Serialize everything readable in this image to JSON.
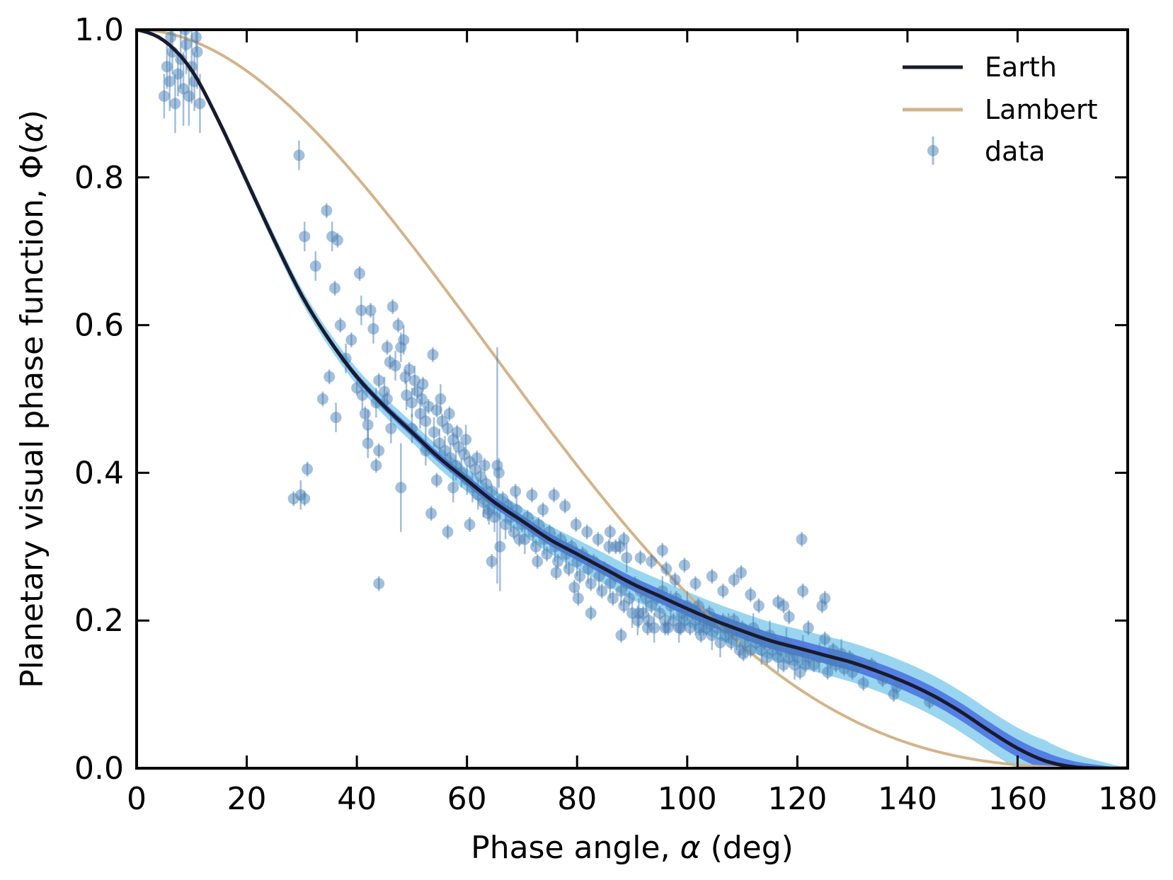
{
  "chart_data": {
    "type": "scatter",
    "title": "",
    "xlabel_main": "Phase angle, ",
    "xlabel_symbol": "α",
    "xlabel_unit": " (deg)",
    "ylabel_main": "Planetary visual phase function, Φ(",
    "ylabel_symbol": "α",
    "ylabel_close": ")",
    "xlim": [
      0,
      180
    ],
    "ylim": [
      0,
      1
    ],
    "xticks": [
      "0",
      "20",
      "40",
      "60",
      "80",
      "100",
      "120",
      "140",
      "160",
      "180"
    ],
    "yticks": [
      "0.0",
      "0.2",
      "0.4",
      "0.6",
      "0.8",
      "1.0"
    ],
    "grid": false,
    "legend_position": "top-right",
    "legend": {
      "earth": "Earth",
      "lambert": "Lambert",
      "data": "data"
    },
    "colors": {
      "earth": "#1a1a2e",
      "lambert": "#d2b48c",
      "data": "#4a7fb5",
      "band_outer": "#87ceeb",
      "band_inner": "#4169e1"
    },
    "earth_curve": {
      "x": [
        0,
        5,
        10,
        15,
        20,
        25,
        30,
        35,
        40,
        45,
        50,
        55,
        60,
        65,
        70,
        75,
        80,
        85,
        90,
        95,
        100,
        105,
        110,
        115,
        120,
        125,
        130,
        135,
        140,
        145,
        150,
        155,
        160,
        165,
        170,
        175,
        180
      ],
      "y": [
        1.0,
        0.985,
        0.945,
        0.875,
        0.795,
        0.715,
        0.64,
        0.58,
        0.53,
        0.49,
        0.455,
        0.42,
        0.39,
        0.36,
        0.335,
        0.31,
        0.29,
        0.27,
        0.25,
        0.233,
        0.216,
        0.2,
        0.186,
        0.173,
        0.163,
        0.153,
        0.143,
        0.13,
        0.115,
        0.097,
        0.075,
        0.05,
        0.027,
        0.01,
        0.002,
        0.0,
        0.0
      ],
      "band_inner_halfwidth": 0.012,
      "band_outer_halfwidth": 0.028
    },
    "lambert_curve": {
      "formula": "(sin(a) + (pi - a) cos(a)) / pi"
    },
    "data_points": [
      [
        5,
        0.91,
        0.03
      ],
      [
        5.5,
        0.95,
        0.03
      ],
      [
        6,
        0.93,
        0.04
      ],
      [
        6.5,
        0.97,
        0.03
      ],
      [
        7,
        0.9,
        0.04
      ],
      [
        7.5,
        0.94,
        0.03
      ],
      [
        8,
        0.96,
        0.04
      ],
      [
        8.5,
        0.92,
        0.05
      ],
      [
        9,
        0.98,
        0.04
      ],
      [
        9.5,
        0.91,
        0.04
      ],
      [
        10,
        0.95,
        0.05
      ],
      [
        10.5,
        0.93,
        0.04
      ],
      [
        11,
        0.97,
        0.05
      ],
      [
        11.5,
        0.9,
        0.04
      ],
      [
        6.2,
        0.99,
        0.02
      ],
      [
        8.8,
        1.0,
        0.03
      ],
      [
        10.8,
        0.99,
        0.02
      ],
      [
        29.5,
        0.83,
        0.02
      ],
      [
        30.5,
        0.72,
        0.02
      ],
      [
        32.5,
        0.68,
        0.02
      ],
      [
        34.5,
        0.755,
        0.01
      ],
      [
        35.5,
        0.72,
        0.02
      ],
      [
        36.5,
        0.715,
        0.01
      ],
      [
        36,
        0.65,
        0.01
      ],
      [
        40.5,
        0.67,
        0.01
      ],
      [
        40.8,
        0.62,
        0.02
      ],
      [
        42.5,
        0.62,
        0.01
      ],
      [
        43,
        0.595,
        0.02
      ],
      [
        46.5,
        0.625,
        0.01
      ],
      [
        47.5,
        0.6,
        0.01
      ],
      [
        48.5,
        0.58,
        0.02
      ],
      [
        48,
        0.57,
        0.02
      ],
      [
        45.5,
        0.57,
        0.01
      ],
      [
        46,
        0.55,
        0.01
      ],
      [
        47,
        0.545,
        0.02
      ],
      [
        48.8,
        0.53,
        0.01
      ],
      [
        37,
        0.6,
        0.01
      ],
      [
        38,
        0.555,
        0.02
      ],
      [
        39,
        0.58,
        0.01
      ],
      [
        40,
        0.515,
        0.01
      ],
      [
        41,
        0.505,
        0.02
      ],
      [
        41.5,
        0.48,
        0.01
      ],
      [
        42,
        0.465,
        0.02
      ],
      [
        43.5,
        0.495,
        0.02
      ],
      [
        44,
        0.525,
        0.01
      ],
      [
        45,
        0.51,
        0.02
      ],
      [
        36.2,
        0.475,
        0.02
      ],
      [
        33.8,
        0.5,
        0.01
      ],
      [
        35,
        0.53,
        0.01
      ],
      [
        42,
        0.44,
        0.02
      ],
      [
        44,
        0.43,
        0.01
      ],
      [
        43.5,
        0.41,
        0.01
      ],
      [
        45.5,
        0.5,
        0.01
      ],
      [
        46.2,
        0.46,
        0.02
      ],
      [
        28.5,
        0.365,
        0.01
      ],
      [
        29.8,
        0.37,
        0.02
      ],
      [
        30.5,
        0.365,
        0.01
      ],
      [
        31,
        0.405,
        0.01
      ],
      [
        44,
        0.25,
        0.01
      ],
      [
        48,
        0.38,
        0.06
      ],
      [
        53.5,
        0.345,
        0.01
      ],
      [
        56.5,
        0.32,
        0.01
      ],
      [
        64.5,
        0.28,
        0.01
      ],
      [
        66,
        0.3,
        0.06
      ],
      [
        49,
        0.505,
        0.02
      ],
      [
        50,
        0.495,
        0.02
      ],
      [
        51,
        0.51,
        0.01
      ],
      [
        51.5,
        0.48,
        0.02
      ],
      [
        52,
        0.52,
        0.01
      ],
      [
        52.5,
        0.47,
        0.02
      ],
      [
        53,
        0.49,
        0.01
      ],
      [
        54,
        0.455,
        0.02
      ],
      [
        54.5,
        0.485,
        0.01
      ],
      [
        55,
        0.44,
        0.02
      ],
      [
        55.5,
        0.47,
        0.01
      ],
      [
        56,
        0.43,
        0.02
      ],
      [
        56.5,
        0.46,
        0.01
      ],
      [
        57,
        0.42,
        0.02
      ],
      [
        57.5,
        0.445,
        0.01
      ],
      [
        58,
        0.41,
        0.02
      ],
      [
        58.5,
        0.435,
        0.01
      ],
      [
        59,
        0.4,
        0.02
      ],
      [
        59.5,
        0.425,
        0.01
      ],
      [
        60,
        0.39,
        0.02
      ],
      [
        60.5,
        0.415,
        0.01
      ],
      [
        61,
        0.38,
        0.02
      ],
      [
        61.5,
        0.405,
        0.01
      ],
      [
        62,
        0.37,
        0.02
      ],
      [
        62.5,
        0.395,
        0.01
      ],
      [
        63,
        0.36,
        0.02
      ],
      [
        63.5,
        0.385,
        0.01
      ],
      [
        64,
        0.35,
        0.02
      ],
      [
        64.5,
        0.375,
        0.01
      ],
      [
        65,
        0.34,
        0.02
      ],
      [
        65.5,
        0.41,
        0.16
      ],
      [
        66.5,
        0.365,
        0.01
      ],
      [
        67,
        0.33,
        0.02
      ],
      [
        67.5,
        0.355,
        0.01
      ],
      [
        68,
        0.34,
        0.02
      ],
      [
        68.5,
        0.32,
        0.01
      ],
      [
        69,
        0.35,
        0.02
      ],
      [
        70,
        0.33,
        0.01
      ],
      [
        70.5,
        0.31,
        0.02
      ],
      [
        71,
        0.34,
        0.01
      ],
      [
        72,
        0.32,
        0.02
      ],
      [
        72.5,
        0.3,
        0.01
      ],
      [
        73,
        0.33,
        0.01
      ],
      [
        74,
        0.31,
        0.02
      ],
      [
        74.5,
        0.29,
        0.01
      ],
      [
        75,
        0.32,
        0.01
      ],
      [
        76,
        0.3,
        0.02
      ],
      [
        76.5,
        0.28,
        0.01
      ],
      [
        77,
        0.31,
        0.01
      ],
      [
        78,
        0.29,
        0.02
      ],
      [
        78.5,
        0.27,
        0.01
      ],
      [
        79,
        0.3,
        0.01
      ],
      [
        80,
        0.28,
        0.02
      ],
      [
        80.5,
        0.26,
        0.01
      ],
      [
        81,
        0.29,
        0.01
      ],
      [
        82,
        0.27,
        0.02
      ],
      [
        82.5,
        0.25,
        0.01
      ],
      [
        83,
        0.28,
        0.01
      ],
      [
        84,
        0.26,
        0.02
      ],
      [
        84.5,
        0.24,
        0.01
      ],
      [
        85,
        0.27,
        0.01
      ],
      [
        86,
        0.25,
        0.02
      ],
      [
        86.5,
        0.23,
        0.01
      ],
      [
        87,
        0.26,
        0.01
      ],
      [
        88,
        0.24,
        0.02
      ],
      [
        88.5,
        0.22,
        0.01
      ],
      [
        89,
        0.25,
        0.01
      ],
      [
        49.5,
        0.54,
        0.01
      ],
      [
        50.5,
        0.525,
        0.02
      ],
      [
        51.8,
        0.5,
        0.01
      ],
      [
        53.8,
        0.56,
        0.01
      ],
      [
        55.2,
        0.5,
        0.02
      ],
      [
        56.8,
        0.48,
        0.01
      ],
      [
        58.2,
        0.455,
        0.01
      ],
      [
        59.8,
        0.445,
        0.02
      ],
      [
        61.8,
        0.42,
        0.01
      ],
      [
        63.2,
        0.41,
        0.01
      ],
      [
        65.8,
        0.4,
        0.02
      ],
      [
        68.8,
        0.375,
        0.01
      ],
      [
        71.8,
        0.37,
        0.01
      ],
      [
        73.8,
        0.35,
        0.01
      ],
      [
        75.8,
        0.37,
        0.01
      ],
      [
        77.8,
        0.355,
        0.01
      ],
      [
        79.8,
        0.33,
        0.01
      ],
      [
        81.8,
        0.32,
        0.01
      ],
      [
        83.8,
        0.31,
        0.01
      ],
      [
        85.8,
        0.3,
        0.01
      ],
      [
        87.8,
        0.3,
        0.01
      ],
      [
        50,
        0.46,
        0.02
      ],
      [
        52.5,
        0.43,
        0.02
      ],
      [
        54.5,
        0.39,
        0.01
      ],
      [
        57.5,
        0.38,
        0.02
      ],
      [
        60.5,
        0.33,
        0.01
      ],
      [
        63.8,
        0.345,
        0.01
      ],
      [
        69.5,
        0.31,
        0.01
      ],
      [
        72.8,
        0.28,
        0.01
      ],
      [
        76.2,
        0.265,
        0.01
      ],
      [
        79.5,
        0.245,
        0.01
      ],
      [
        82.5,
        0.21,
        0.01
      ],
      [
        80.2,
        0.23,
        0.01
      ],
      [
        88,
        0.18,
        0.01
      ],
      [
        89.5,
        0.23,
        0.01
      ],
      [
        90,
        0.21,
        0.02
      ],
      [
        90.5,
        0.25,
        0.01
      ],
      [
        91,
        0.2,
        0.02
      ],
      [
        91.5,
        0.24,
        0.01
      ],
      [
        92,
        0.21,
        0.01
      ],
      [
        92.5,
        0.23,
        0.02
      ],
      [
        93,
        0.2,
        0.01
      ],
      [
        93.5,
        0.22,
        0.01
      ],
      [
        94,
        0.19,
        0.02
      ],
      [
        94.5,
        0.23,
        0.01
      ],
      [
        95,
        0.21,
        0.01
      ],
      [
        95.5,
        0.24,
        0.02
      ],
      [
        96,
        0.2,
        0.01
      ],
      [
        96.5,
        0.19,
        0.01
      ],
      [
        97,
        0.22,
        0.02
      ],
      [
        97.5,
        0.2,
        0.01
      ],
      [
        98,
        0.23,
        0.01
      ],
      [
        98.5,
        0.19,
        0.02
      ],
      [
        99,
        0.21,
        0.01
      ],
      [
        99.5,
        0.2,
        0.01
      ],
      [
        100,
        0.22,
        0.02
      ],
      [
        100.5,
        0.19,
        0.01
      ],
      [
        101,
        0.21,
        0.01
      ],
      [
        101.5,
        0.2,
        0.02
      ],
      [
        102,
        0.22,
        0.01
      ],
      [
        102.5,
        0.18,
        0.01
      ],
      [
        103,
        0.2,
        0.02
      ],
      [
        103.5,
        0.19,
        0.01
      ],
      [
        104,
        0.21,
        0.01
      ],
      [
        104.5,
        0.18,
        0.02
      ],
      [
        105,
        0.2,
        0.01
      ],
      [
        105.5,
        0.19,
        0.01
      ],
      [
        106,
        0.17,
        0.02
      ],
      [
        106.5,
        0.2,
        0.01
      ],
      [
        107,
        0.18,
        0.01
      ],
      [
        107.5,
        0.19,
        0.02
      ],
      [
        108,
        0.17,
        0.01
      ],
      [
        108.5,
        0.2,
        0.01
      ],
      [
        109,
        0.18,
        0.02
      ],
      [
        109.5,
        0.16,
        0.01
      ],
      [
        110,
        0.19,
        0.01
      ],
      [
        110.5,
        0.17,
        0.02
      ],
      [
        111,
        0.18,
        0.01
      ],
      [
        111.5,
        0.16,
        0.01
      ],
      [
        112,
        0.19,
        0.02
      ],
      [
        112.5,
        0.17,
        0.01
      ],
      [
        113,
        0.18,
        0.01
      ],
      [
        113.5,
        0.16,
        0.02
      ],
      [
        114,
        0.17,
        0.01
      ],
      [
        114.5,
        0.15,
        0.01
      ],
      [
        115,
        0.18,
        0.02
      ],
      [
        115.5,
        0.16,
        0.01
      ],
      [
        116,
        0.17,
        0.01
      ],
      [
        116.5,
        0.15,
        0.02
      ],
      [
        117,
        0.16,
        0.01
      ],
      [
        117.5,
        0.14,
        0.01
      ],
      [
        118,
        0.17,
        0.02
      ],
      [
        118.5,
        0.15,
        0.01
      ],
      [
        119,
        0.16,
        0.01
      ],
      [
        119.5,
        0.14,
        0.02
      ],
      [
        120,
        0.15,
        0.01
      ],
      [
        120.5,
        0.13,
        0.01
      ],
      [
        121,
        0.16,
        0.02
      ],
      [
        121.5,
        0.14,
        0.01
      ],
      [
        122,
        0.15,
        0.01
      ],
      [
        95.5,
        0.295,
        0.01
      ],
      [
        99.5,
        0.275,
        0.01
      ],
      [
        101.5,
        0.25,
        0.01
      ],
      [
        104.5,
        0.26,
        0.01
      ],
      [
        106.5,
        0.24,
        0.01
      ],
      [
        108.5,
        0.255,
        0.01
      ],
      [
        109.8,
        0.265,
        0.01
      ],
      [
        111.5,
        0.235,
        0.01
      ],
      [
        113,
        0.22,
        0.01
      ],
      [
        116.5,
        0.225,
        0.01
      ],
      [
        117.5,
        0.22,
        0.01
      ],
      [
        118.5,
        0.205,
        0.01
      ],
      [
        120.8,
        0.31,
        0.01
      ],
      [
        121,
        0.24,
        0.01
      ],
      [
        122,
        0.19,
        0.01
      ],
      [
        125,
        0.23,
        0.01
      ],
      [
        124.5,
        0.22,
        0.01
      ],
      [
        125,
        0.175,
        0.01
      ],
      [
        126.5,
        0.16,
        0.01
      ],
      [
        123,
        0.14,
        0.01
      ],
      [
        124,
        0.15,
        0.02
      ],
      [
        125.5,
        0.13,
        0.01
      ],
      [
        126,
        0.145,
        0.01
      ],
      [
        127,
        0.14,
        0.01
      ],
      [
        128,
        0.155,
        0.02
      ],
      [
        128.5,
        0.135,
        0.01
      ],
      [
        129.5,
        0.15,
        0.01
      ],
      [
        130,
        0.13,
        0.01
      ],
      [
        131,
        0.14,
        0.01
      ],
      [
        132,
        0.115,
        0.01
      ],
      [
        133.5,
        0.14,
        0.01
      ],
      [
        135.5,
        0.12,
        0.01
      ],
      [
        137.5,
        0.1,
        0.01
      ],
      [
        138,
        0.11,
        0.01
      ],
      [
        144,
        0.09,
        0.01
      ],
      [
        86,
        0.32,
        0.01
      ],
      [
        87,
        0.3,
        0.01
      ],
      [
        88.5,
        0.31,
        0.01
      ],
      [
        89,
        0.285,
        0.02
      ],
      [
        91.5,
        0.285,
        0.01
      ],
      [
        93.5,
        0.28,
        0.01
      ],
      [
        96.2,
        0.27,
        0.01
      ],
      [
        97.8,
        0.255,
        0.01
      ],
      [
        91.2,
        0.21,
        0.02
      ],
      [
        92.8,
        0.19,
        0.01
      ],
      [
        96,
        0.19,
        0.01
      ],
      [
        98.8,
        0.19,
        0.01
      ],
      [
        102.2,
        0.19,
        0.01
      ],
      [
        104.2,
        0.195,
        0.01
      ],
      [
        106.8,
        0.19,
        0.01
      ],
      [
        108.2,
        0.185,
        0.01
      ],
      [
        110.2,
        0.155,
        0.01
      ]
    ]
  }
}
